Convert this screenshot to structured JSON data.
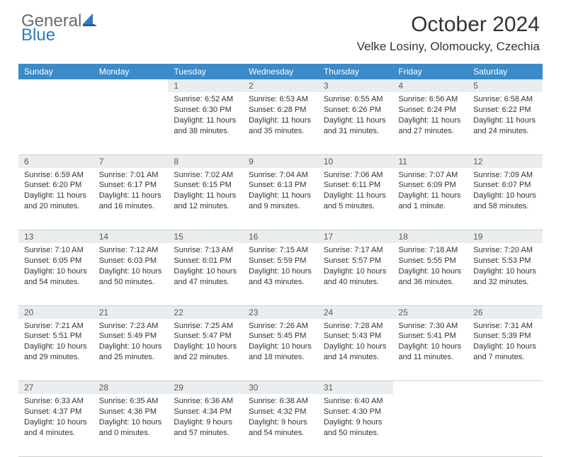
{
  "logo": {
    "general": "General",
    "blue": "Blue"
  },
  "title": "October 2024",
  "location": "Velke Losiny, Olomoucky, Czechia",
  "colors": {
    "header_bg": "#3b8bc9",
    "daynum_bg": "#e9edef",
    "border": "#cfcfcf",
    "text": "#333333",
    "logo_gray": "#6b6b6b",
    "logo_blue": "#2f7bbf"
  },
  "day_headers": [
    "Sunday",
    "Monday",
    "Tuesday",
    "Wednesday",
    "Thursday",
    "Friday",
    "Saturday"
  ],
  "weeks": [
    [
      null,
      null,
      {
        "n": "1",
        "sr": "6:52 AM",
        "ss": "6:30 PM",
        "dl": "11 hours and 38 minutes."
      },
      {
        "n": "2",
        "sr": "6:53 AM",
        "ss": "6:28 PM",
        "dl": "11 hours and 35 minutes."
      },
      {
        "n": "3",
        "sr": "6:55 AM",
        "ss": "6:26 PM",
        "dl": "11 hours and 31 minutes."
      },
      {
        "n": "4",
        "sr": "6:56 AM",
        "ss": "6:24 PM",
        "dl": "11 hours and 27 minutes."
      },
      {
        "n": "5",
        "sr": "6:58 AM",
        "ss": "6:22 PM",
        "dl": "11 hours and 24 minutes."
      }
    ],
    [
      {
        "n": "6",
        "sr": "6:59 AM",
        "ss": "6:20 PM",
        "dl": "11 hours and 20 minutes."
      },
      {
        "n": "7",
        "sr": "7:01 AM",
        "ss": "6:17 PM",
        "dl": "11 hours and 16 minutes."
      },
      {
        "n": "8",
        "sr": "7:02 AM",
        "ss": "6:15 PM",
        "dl": "11 hours and 12 minutes."
      },
      {
        "n": "9",
        "sr": "7:04 AM",
        "ss": "6:13 PM",
        "dl": "11 hours and 9 minutes."
      },
      {
        "n": "10",
        "sr": "7:06 AM",
        "ss": "6:11 PM",
        "dl": "11 hours and 5 minutes."
      },
      {
        "n": "11",
        "sr": "7:07 AM",
        "ss": "6:09 PM",
        "dl": "11 hours and 1 minute."
      },
      {
        "n": "12",
        "sr": "7:09 AM",
        "ss": "6:07 PM",
        "dl": "10 hours and 58 minutes."
      }
    ],
    [
      {
        "n": "13",
        "sr": "7:10 AM",
        "ss": "6:05 PM",
        "dl": "10 hours and 54 minutes."
      },
      {
        "n": "14",
        "sr": "7:12 AM",
        "ss": "6:03 PM",
        "dl": "10 hours and 50 minutes."
      },
      {
        "n": "15",
        "sr": "7:13 AM",
        "ss": "6:01 PM",
        "dl": "10 hours and 47 minutes."
      },
      {
        "n": "16",
        "sr": "7:15 AM",
        "ss": "5:59 PM",
        "dl": "10 hours and 43 minutes."
      },
      {
        "n": "17",
        "sr": "7:17 AM",
        "ss": "5:57 PM",
        "dl": "10 hours and 40 minutes."
      },
      {
        "n": "18",
        "sr": "7:18 AM",
        "ss": "5:55 PM",
        "dl": "10 hours and 36 minutes."
      },
      {
        "n": "19",
        "sr": "7:20 AM",
        "ss": "5:53 PM",
        "dl": "10 hours and 32 minutes."
      }
    ],
    [
      {
        "n": "20",
        "sr": "7:21 AM",
        "ss": "5:51 PM",
        "dl": "10 hours and 29 minutes."
      },
      {
        "n": "21",
        "sr": "7:23 AM",
        "ss": "5:49 PM",
        "dl": "10 hours and 25 minutes."
      },
      {
        "n": "22",
        "sr": "7:25 AM",
        "ss": "5:47 PM",
        "dl": "10 hours and 22 minutes."
      },
      {
        "n": "23",
        "sr": "7:26 AM",
        "ss": "5:45 PM",
        "dl": "10 hours and 18 minutes."
      },
      {
        "n": "24",
        "sr": "7:28 AM",
        "ss": "5:43 PM",
        "dl": "10 hours and 14 minutes."
      },
      {
        "n": "25",
        "sr": "7:30 AM",
        "ss": "5:41 PM",
        "dl": "10 hours and 11 minutes."
      },
      {
        "n": "26",
        "sr": "7:31 AM",
        "ss": "5:39 PM",
        "dl": "10 hours and 7 minutes."
      }
    ],
    [
      {
        "n": "27",
        "sr": "6:33 AM",
        "ss": "4:37 PM",
        "dl": "10 hours and 4 minutes."
      },
      {
        "n": "28",
        "sr": "6:35 AM",
        "ss": "4:36 PM",
        "dl": "10 hours and 0 minutes."
      },
      {
        "n": "29",
        "sr": "6:36 AM",
        "ss": "4:34 PM",
        "dl": "9 hours and 57 minutes."
      },
      {
        "n": "30",
        "sr": "6:38 AM",
        "ss": "4:32 PM",
        "dl": "9 hours and 54 minutes."
      },
      {
        "n": "31",
        "sr": "6:40 AM",
        "ss": "4:30 PM",
        "dl": "9 hours and 50 minutes."
      },
      null,
      null
    ]
  ],
  "labels": {
    "sunrise": "Sunrise:",
    "sunset": "Sunset:",
    "daylight": "Daylight:"
  }
}
